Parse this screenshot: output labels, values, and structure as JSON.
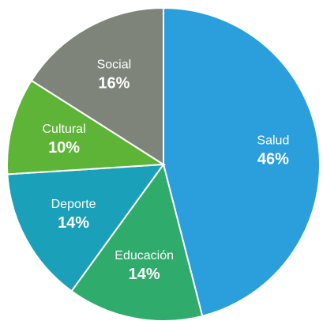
{
  "chart_data": {
    "type": "pie",
    "categories": [
      "Salud",
      "Educación",
      "Deporte",
      "Cultural",
      "Social"
    ],
    "values": [
      46,
      14,
      14,
      10,
      16
    ],
    "value_labels": [
      "46%",
      "14%",
      "14%",
      "10%",
      "16%"
    ],
    "colors": [
      "#2a9fdb",
      "#2fab6b",
      "#1aa1b9",
      "#5db436",
      "#7e847a"
    ]
  }
}
